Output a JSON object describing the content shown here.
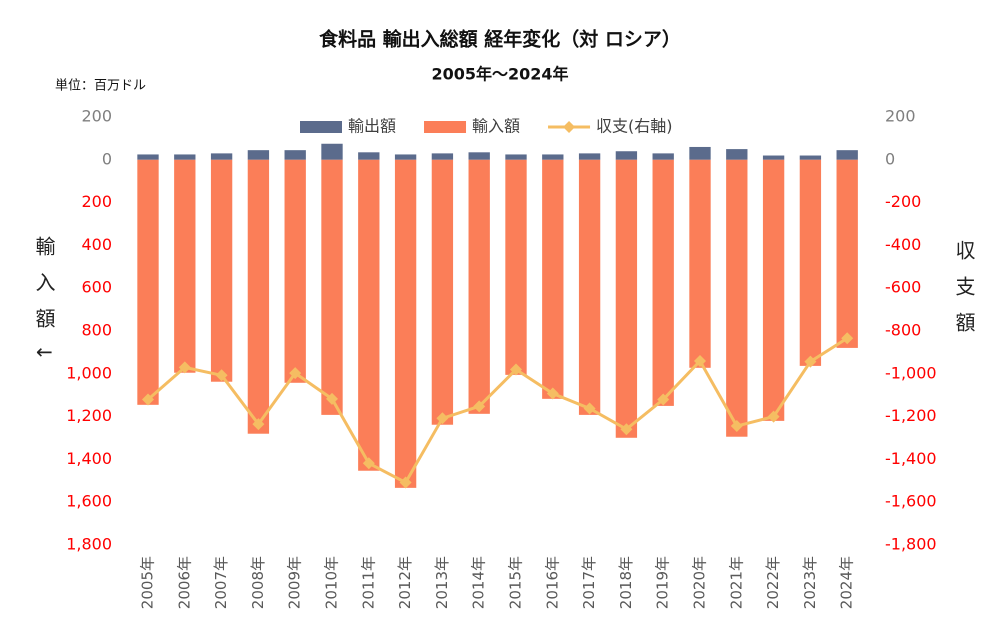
{
  "chart_data": {
    "type": "bar-line",
    "title": "食料品 輸出入総額 経年変化（対 ロシア）",
    "subtitle": "2005年～2024年",
    "unit_label": "単位：百万ドル",
    "y_label": "輸入額↓",
    "y2_label": "収支額",
    "categories": [
      "2005年",
      "2006年",
      "2007年",
      "2008年",
      "2009年",
      "2010年",
      "2011年",
      "2012年",
      "2013年",
      "2014年",
      "2015年",
      "2016年",
      "2017年",
      "2018年",
      "2019年",
      "2020年",
      "2021年",
      "2022年",
      "2023年",
      "2024年"
    ],
    "series": [
      {
        "name": "輸出額",
        "kind": "bar",
        "color": "#5b6b8c",
        "values": [
          25,
          25,
          30,
          45,
          45,
          75,
          35,
          25,
          30,
          35,
          25,
          25,
          30,
          40,
          30,
          60,
          50,
          20,
          20,
          45
        ]
      },
      {
        "name": "輸入額",
        "kind": "bar",
        "color": "#fb7e58",
        "values": [
          -1145,
          -995,
          -1037,
          -1280,
          -1042,
          -1192,
          -1453,
          -1533,
          -1238,
          -1187,
          -1005,
          -1117,
          -1192,
          -1299,
          -1150,
          -972,
          -1294,
          -1220,
          -963,
          -879
        ]
      },
      {
        "name": "収支(右軸)",
        "kind": "line",
        "axis": "y2",
        "color": "#f5bd62",
        "values": [
          -1120,
          -970,
          -1007,
          -1235,
          -997,
          -1117,
          -1418,
          -1508,
          -1208,
          -1152,
          -980,
          -1092,
          -1162,
          -1259,
          -1120,
          -940,
          -1244,
          -1200,
          -943,
          -834
        ]
      }
    ],
    "ylim": [
      200,
      -1800
    ],
    "yticks": [
      200,
      0,
      {
        "value": -200,
        "label": "200"
      },
      {
        "value": -400,
        "label": "400"
      },
      {
        "value": -600,
        "label": "600"
      },
      {
        "value": -800,
        "label": "800"
      },
      {
        "value": -1000,
        "label": "1,000"
      },
      {
        "value": -1200,
        "label": "1,200"
      },
      {
        "value": -1400,
        "label": "1,400"
      },
      {
        "value": -1600,
        "label": "1,600"
      },
      {
        "value": -1800,
        "label": "1,800"
      }
    ],
    "y2lim": [
      200,
      -1800
    ],
    "y2ticks": [
      200,
      0,
      -200,
      -400,
      -600,
      -800,
      {
        "value": -1000,
        "label": "-1,000"
      },
      {
        "value": -1200,
        "label": "-1,200"
      },
      {
        "value": -1400,
        "label": "-1,400"
      },
      {
        "value": -1600,
        "label": "-1,600"
      },
      {
        "value": -1800,
        "label": "-1,800"
      }
    ],
    "legend": "top"
  }
}
